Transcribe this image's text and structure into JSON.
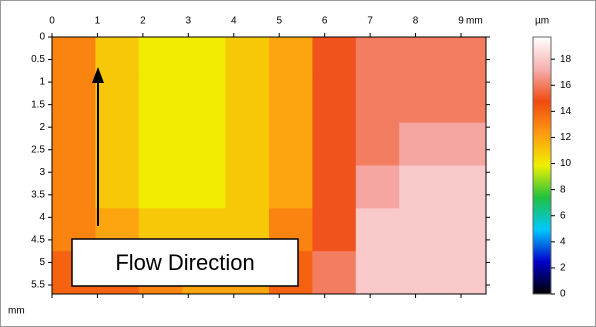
{
  "chart_data": {
    "type": "heatmap",
    "x_unit": "mm",
    "y_unit": "mm",
    "z_unit": "µm",
    "xlim": [
      0,
      9.55
    ],
    "xticks": [
      0,
      1,
      2,
      3,
      4,
      5,
      6,
      7,
      8,
      9
    ],
    "ylim": [
      0,
      5.7
    ],
    "yticks": [
      0,
      0.5,
      1,
      1.5,
      2,
      2.5,
      3,
      3.5,
      4,
      4.5,
      5,
      5.5
    ],
    "zlim": [
      0,
      19.7
    ],
    "zticks": [
      0,
      2,
      4,
      6,
      8,
      10,
      12,
      14,
      16,
      18
    ],
    "colormap": [
      "#000000",
      "#0000c8",
      "#00c8ff",
      "#20c040",
      "#f0f000",
      "#ff9a10",
      "#f04a10",
      "#f6b0b0",
      "#ffffff"
    ],
    "z": [
      [
        13,
        11,
        10,
        10,
        11,
        12,
        15,
        16,
        16,
        16
      ],
      [
        13,
        11,
        10,
        10,
        11,
        12,
        15,
        16,
        16,
        16
      ],
      [
        13,
        11,
        10,
        10,
        11,
        12,
        15,
        16,
        17,
        17
      ],
      [
        13,
        11,
        10,
        10,
        11,
        12,
        15,
        17,
        18,
        18
      ],
      [
        13,
        12,
        11,
        11,
        11,
        13,
        15,
        18,
        18,
        18
      ],
      [
        14,
        14,
        13,
        12,
        12,
        14,
        16,
        18,
        18,
        18
      ]
    ],
    "annotation": "Flow Direction"
  }
}
